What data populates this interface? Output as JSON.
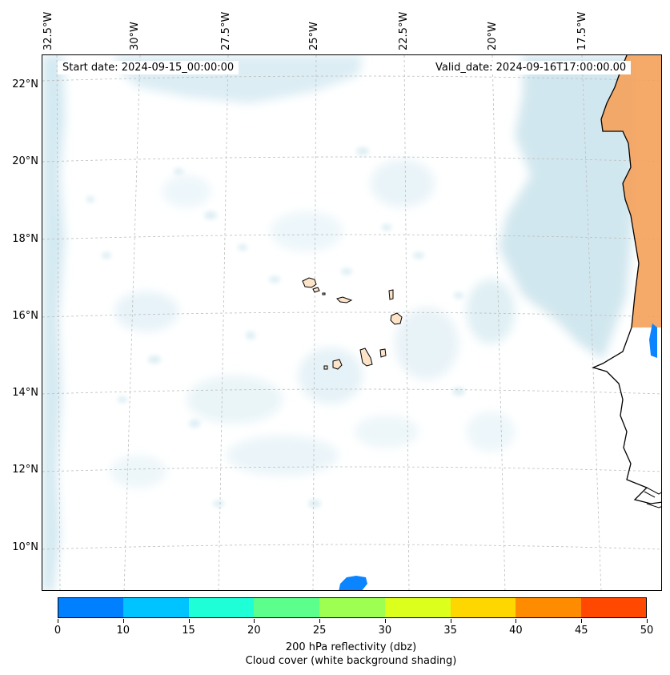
{
  "map": {
    "start_date_label": "Start date: 2024-09-15_00:00:00",
    "valid_date_label": "Valid_date: 2024-09-16T17:00:00.00",
    "longitude_labels": [
      "32.5°W",
      "30°W",
      "27.5°W",
      "25°W",
      "22.5°W",
      "20°W",
      "17.5°W"
    ],
    "latitude_labels": [
      "22°N",
      "20°N",
      "18°N",
      "16°N",
      "14°N",
      "12°N",
      "10°N"
    ]
  },
  "colorbar": {
    "ticks": [
      "0",
      "10",
      "15",
      "20",
      "25",
      "30",
      "35",
      "40",
      "45",
      "50"
    ],
    "colors": [
      "#0080ff",
      "#00c4ff",
      "#1effd8",
      "#5cff8c",
      "#9cff52",
      "#dcff1c",
      "#ffd700",
      "#ff8c00",
      "#ff4800"
    ],
    "title_line1": "200 hPa reflectivity (dbz)",
    "title_line2": "Cloud cover (white background shading)"
  },
  "style": {
    "cloud_color": "#cfe8f0",
    "land_color": "#f5a15a",
    "island_color": "#fde3c8",
    "reflectivity_color": "#0a84ff"
  }
}
